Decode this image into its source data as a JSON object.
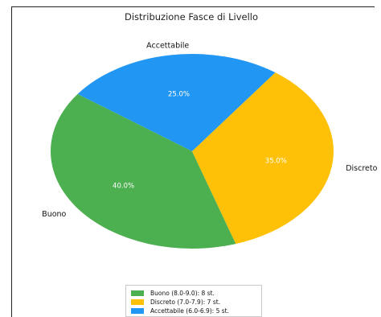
{
  "chart_data": {
    "type": "pie",
    "title": "Distribuzione Fasce di Livello",
    "slices": [
      {
        "label": "Buono",
        "legend": "Buono (8.0-9.0): 8 st.",
        "value": 8,
        "pct_label": "40.0%",
        "color": "#4caf50"
      },
      {
        "label": "Discreto",
        "legend": "Discreto (7.0-7.9): 7 st.",
        "value": 7,
        "pct_label": "35.0%",
        "color": "#ffc107"
      },
      {
        "label": "Accettabile",
        "legend": "Accettabile (6.0-6.9): 5 st.",
        "value": 5,
        "pct_label": "25.0%",
        "color": "#2196f3"
      }
    ],
    "legend_position": "bottom"
  }
}
